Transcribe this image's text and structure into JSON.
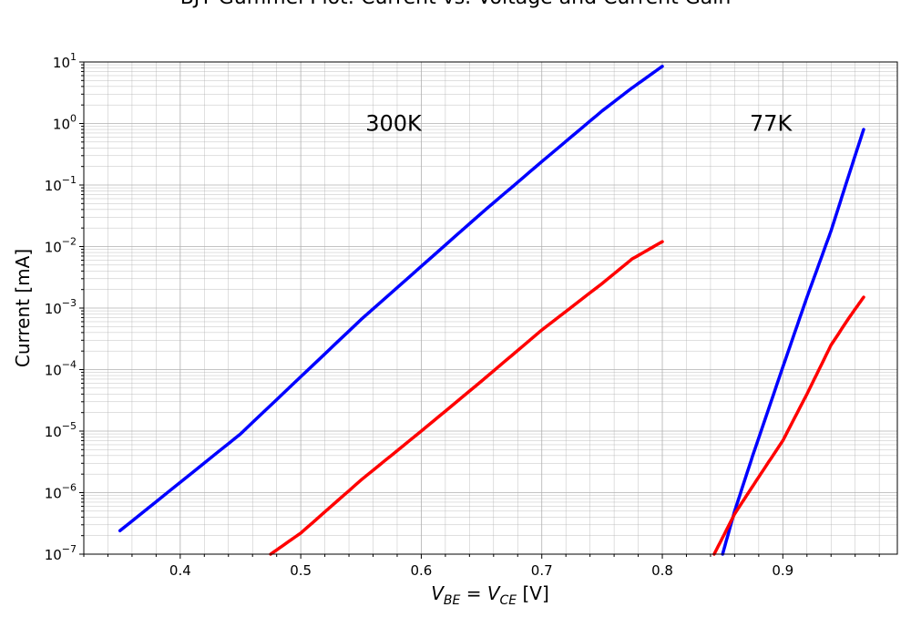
{
  "chart_data": {
    "type": "line",
    "title": "BJT Gummel Plot: Current vs. Voltage and Current Gain",
    "xlabel": "V_BE = V_CE [V]",
    "ylabel": "Current [mA]",
    "xlim": [
      0.32,
      0.995
    ],
    "ylim": [
      1e-07,
      10
    ],
    "yscale": "log",
    "grid": true,
    "x_ticks": [
      "0.4",
      "0.5",
      "0.6",
      "0.7",
      "0.8",
      "0.9"
    ],
    "y_ticks": [
      {
        "base": "10",
        "exp": "1"
      },
      {
        "base": "10",
        "exp": "0"
      },
      {
        "base": "10",
        "exp": "−1"
      },
      {
        "base": "10",
        "exp": "−2"
      },
      {
        "base": "10",
        "exp": "−3"
      },
      {
        "base": "10",
        "exp": "−4"
      },
      {
        "base": "10",
        "exp": "−5"
      },
      {
        "base": "10",
        "exp": "−6"
      },
      {
        "base": "10",
        "exp": "−7"
      }
    ],
    "annotations": [
      {
        "text": "300K",
        "x": 0.577,
        "y": 1.0
      },
      {
        "text": "77K",
        "x": 0.89,
        "y": 1.0
      }
    ],
    "series": [
      {
        "color": "#0000ff",
        "x": [
          0.35,
          0.45,
          0.55,
          0.65,
          0.7,
          0.75,
          0.775,
          0.8
        ],
        "y": [
          2.4e-07,
          9e-06,
          0.00065,
          0.035,
          0.24,
          1.6,
          3.8,
          8.5
        ]
      },
      {
        "color": "#ff0000",
        "x": [
          0.475,
          0.5,
          0.55,
          0.6,
          0.65,
          0.7,
          0.75,
          0.775,
          0.8
        ],
        "y": [
          1e-07,
          2.2e-07,
          1.6e-06,
          1e-05,
          6.5e-05,
          0.00044,
          0.0025,
          0.0063,
          0.012
        ]
      },
      {
        "color": "#0000ff",
        "x": [
          0.85,
          0.86,
          0.875,
          0.9,
          0.92,
          0.94,
          0.955,
          0.967
        ],
        "y": [
          1e-07,
          5e-07,
          4e-06,
          0.00011,
          0.0015,
          0.018,
          0.15,
          0.8
        ]
      },
      {
        "color": "#ff0000",
        "x": [
          0.843,
          0.86,
          0.88,
          0.9,
          0.92,
          0.94,
          0.955,
          0.967
        ],
        "y": [
          1e-07,
          4.5e-07,
          1.8e-06,
          7e-06,
          4e-05,
          0.00025,
          0.0007,
          0.0015
        ]
      }
    ]
  }
}
